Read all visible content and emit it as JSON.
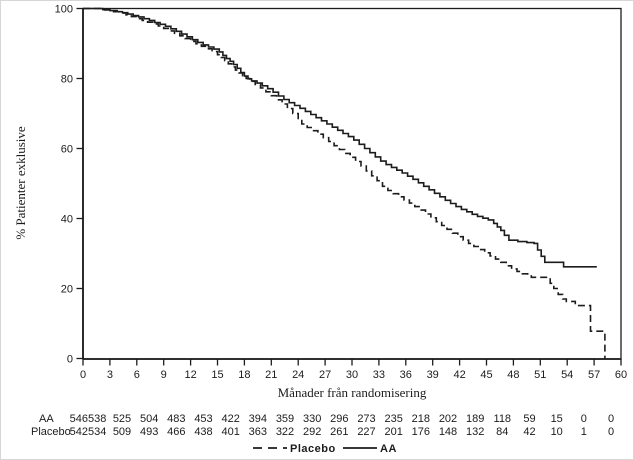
{
  "figure": {
    "background": "#ffffff",
    "ink_color": "#1c1c1c",
    "border_color": "#d6d6d6"
  },
  "chart_data": {
    "type": "line",
    "subtype": "kaplan-meier-step",
    "title": "",
    "xlabel": "Månader från randomisering",
    "ylabel": "% Patienter exklusive",
    "xlim": [
      0,
      60
    ],
    "ylim": [
      0,
      100
    ],
    "x_ticks": [
      0,
      3,
      6,
      9,
      12,
      15,
      18,
      21,
      24,
      27,
      30,
      33,
      36,
      39,
      42,
      45,
      48,
      51,
      54,
      57,
      60
    ],
    "y_ticks": [
      0,
      20,
      40,
      60,
      80,
      100
    ],
    "grid": false,
    "legend": {
      "position": "bottom-center",
      "entries": [
        {
          "label": "Placebo",
          "style": "dashed"
        },
        {
          "label": "AA",
          "style": "solid"
        }
      ]
    },
    "series": [
      {
        "name": "AA",
        "style": "solid",
        "points": [
          [
            0,
            100
          ],
          [
            1.8,
            100
          ],
          [
            2.2,
            99.7
          ],
          [
            3,
            99.4
          ],
          [
            3.8,
            99.1
          ],
          [
            4.4,
            98.8
          ],
          [
            5,
            98.4
          ],
          [
            5.6,
            98
          ],
          [
            6.2,
            97.6
          ],
          [
            6.8,
            97.1
          ],
          [
            7.4,
            96.6
          ],
          [
            8,
            96
          ],
          [
            8.6,
            95.5
          ],
          [
            9.2,
            94.9
          ],
          [
            9.8,
            94.2
          ],
          [
            10.4,
            93.5
          ],
          [
            11,
            92.7
          ],
          [
            11.6,
            91.9
          ],
          [
            12.2,
            91.1
          ],
          [
            12.8,
            90.3
          ],
          [
            13.4,
            89.6
          ],
          [
            14,
            89
          ],
          [
            14.6,
            88.4
          ],
          [
            15.2,
            87.6
          ],
          [
            15.6,
            86.6
          ],
          [
            16,
            85.7
          ],
          [
            16.4,
            84.9
          ],
          [
            16.8,
            84
          ],
          [
            17.2,
            82.9
          ],
          [
            17.6,
            81.7
          ],
          [
            18,
            80.7
          ],
          [
            18.4,
            79.9
          ],
          [
            18.8,
            79.3
          ],
          [
            19.4,
            78.7
          ],
          [
            20,
            77.9
          ],
          [
            20.6,
            77.1
          ],
          [
            21.2,
            76.1
          ],
          [
            21.8,
            75
          ],
          [
            22.4,
            74
          ],
          [
            23,
            73.1
          ],
          [
            23.6,
            72.3
          ],
          [
            24.2,
            71.5
          ],
          [
            24.8,
            70.6
          ],
          [
            25.4,
            69.7
          ],
          [
            26,
            68.8
          ],
          [
            26.6,
            67.9
          ],
          [
            27.2,
            67
          ],
          [
            27.8,
            66.1
          ],
          [
            28.4,
            65.2
          ],
          [
            29,
            64.3
          ],
          [
            29.6,
            63.4
          ],
          [
            30.2,
            62.4
          ],
          [
            30.8,
            61.2
          ],
          [
            31.4,
            60
          ],
          [
            32,
            58.8
          ],
          [
            32.6,
            57.6
          ],
          [
            33.2,
            56.4
          ],
          [
            33.8,
            55.4
          ],
          [
            34.4,
            54.6
          ],
          [
            35,
            53.8
          ],
          [
            35.6,
            53
          ],
          [
            36.2,
            52.1
          ],
          [
            36.8,
            51.2
          ],
          [
            37.4,
            50.2
          ],
          [
            38,
            49.2
          ],
          [
            38.6,
            48.2
          ],
          [
            39.2,
            47.2
          ],
          [
            39.8,
            46.2
          ],
          [
            40.4,
            45.2
          ],
          [
            41,
            44.3
          ],
          [
            41.6,
            43.4
          ],
          [
            42.2,
            42.6
          ],
          [
            42.8,
            41.9
          ],
          [
            43.4,
            41.2
          ],
          [
            44,
            40.6
          ],
          [
            44.6,
            40.1
          ],
          [
            45.2,
            39.6
          ],
          [
            45.8,
            38.6
          ],
          [
            46.2,
            37.6
          ],
          [
            46.6,
            36.6
          ],
          [
            47,
            35.2
          ],
          [
            47.5,
            33.8
          ],
          [
            48.5,
            33.4
          ],
          [
            49.5,
            33.1
          ],
          [
            50.3,
            32.9
          ],
          [
            50.7,
            31
          ],
          [
            51.1,
            29.2
          ],
          [
            51.5,
            27.5
          ],
          [
            53.4,
            27.5
          ],
          [
            53.6,
            26.2
          ],
          [
            57.3,
            26.2
          ]
        ]
      },
      {
        "name": "Placebo",
        "style": "dashed",
        "points": [
          [
            0,
            100
          ],
          [
            1.8,
            100
          ],
          [
            2.4,
            99.6
          ],
          [
            3.2,
            99.1
          ],
          [
            4,
            98.7
          ],
          [
            4.8,
            98.2
          ],
          [
            5.4,
            97.7
          ],
          [
            6,
            97.1
          ],
          [
            6.6,
            96.6
          ],
          [
            7.2,
            96.1
          ],
          [
            7.8,
            95.6
          ],
          [
            8.4,
            95
          ],
          [
            9,
            94.3
          ],
          [
            9.6,
            93.6
          ],
          [
            10.2,
            92.9
          ],
          [
            10.8,
            92.2
          ],
          [
            11.4,
            91.4
          ],
          [
            12,
            90.6
          ],
          [
            12.6,
            89.9
          ],
          [
            13.2,
            89.2
          ],
          [
            13.8,
            88.5
          ],
          [
            14.4,
            87.7
          ],
          [
            15,
            86.8
          ],
          [
            15.4,
            86
          ],
          [
            15.8,
            85.1
          ],
          [
            16.2,
            84.2
          ],
          [
            16.6,
            83.3
          ],
          [
            17,
            82.4
          ],
          [
            17.4,
            81.6
          ],
          [
            17.8,
            80.8
          ],
          [
            18.2,
            80
          ],
          [
            18.6,
            79.2
          ],
          [
            19.2,
            78.3
          ],
          [
            19.8,
            77.3
          ],
          [
            20.4,
            76.2
          ],
          [
            21,
            75.1
          ],
          [
            21.6,
            73.9
          ],
          [
            22.2,
            72.7
          ],
          [
            22.8,
            71.4
          ],
          [
            23.4,
            70
          ],
          [
            24,
            68.3
          ],
          [
            24.4,
            67
          ],
          [
            25,
            66
          ],
          [
            25.6,
            65.1
          ],
          [
            26.2,
            64.1
          ],
          [
            26.8,
            63.1
          ],
          [
            27.4,
            62
          ],
          [
            28,
            60.8
          ],
          [
            28.6,
            59.7
          ],
          [
            29.2,
            58.6
          ],
          [
            29.8,
            57.5
          ],
          [
            30.4,
            56.3
          ],
          [
            31,
            55
          ],
          [
            31.6,
            53.6
          ],
          [
            32.2,
            52.2
          ],
          [
            32.8,
            50.8
          ],
          [
            33.4,
            49.2
          ],
          [
            34,
            48
          ],
          [
            34.6,
            47.1
          ],
          [
            35.2,
            46.2
          ],
          [
            35.8,
            45.3
          ],
          [
            36.4,
            44.4
          ],
          [
            37,
            43.4
          ],
          [
            37.6,
            42.4
          ],
          [
            38.2,
            41.3
          ],
          [
            38.8,
            40.2
          ],
          [
            39.4,
            39.1
          ],
          [
            40,
            38
          ],
          [
            40.6,
            36.9
          ],
          [
            41.2,
            35.8
          ],
          [
            41.8,
            34.8
          ],
          [
            42.4,
            33.8
          ],
          [
            43,
            32.9
          ],
          [
            43.6,
            32
          ],
          [
            44.2,
            31.1
          ],
          [
            44.8,
            30.2
          ],
          [
            45.4,
            29.3
          ],
          [
            46,
            28.4
          ],
          [
            46.6,
            27.5
          ],
          [
            47.2,
            26.5
          ],
          [
            47.8,
            25.6
          ],
          [
            48.4,
            24.9
          ],
          [
            49,
            24.2
          ],
          [
            49.6,
            23.6
          ],
          [
            50,
            23.2
          ],
          [
            51.7,
            23.2
          ],
          [
            52.1,
            21.5
          ],
          [
            52.5,
            20
          ],
          [
            53,
            18.3
          ],
          [
            53.5,
            17
          ],
          [
            53.9,
            16.3
          ],
          [
            54.7,
            16.3
          ],
          [
            54.9,
            15.1
          ],
          [
            56.4,
            15.1
          ],
          [
            56.6,
            7.8
          ],
          [
            58.1,
            7.8
          ],
          [
            58.2,
            0
          ]
        ]
      }
    ],
    "risk_table": {
      "rows": [
        {
          "label": "AA",
          "counts": [
            "546538",
            "525",
            "504",
            "483",
            "453",
            "422",
            "394",
            "359",
            "330",
            "296",
            "273",
            "235",
            "218",
            "202",
            "189",
            "118",
            "59",
            "15",
            "0",
            "0"
          ]
        },
        {
          "label": "Placebo",
          "counts": [
            "542534",
            "509",
            "493",
            "466",
            "438",
            "401",
            "363",
            "322",
            "292",
            "261",
            "227",
            "201",
            "176",
            "148",
            "132",
            "84",
            "42",
            "10",
            "1",
            "0"
          ]
        }
      ]
    }
  }
}
